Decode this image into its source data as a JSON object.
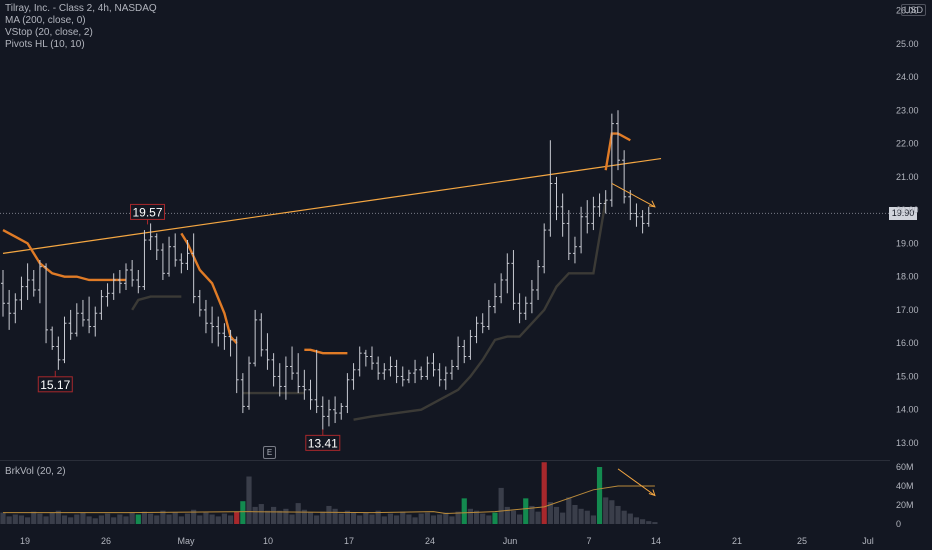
{
  "header": {
    "title": "Tilray, Inc. - Class 2, 4h, NASDAQ",
    "indicators": [
      "MA (200, close, 0)",
      "VStop (20, close, 2)",
      "Pivots HL (10, 10)"
    ]
  },
  "currency_button": "USD",
  "last_price_label": "19.90",
  "earnings_marker": "E",
  "volume_legend": "BrkVol (20, 2)",
  "colors": {
    "background": "#131722",
    "candle": "#c8cad2",
    "ma": "#f5a742",
    "vstop_up": "#3b3a36",
    "vstop_down": "#e07b26",
    "vol_neutral": "#3a3e4a",
    "vol_up": "#138a4f",
    "vol_down": "#a8282c",
    "vol_ma": "#b98a3a"
  },
  "chart_data": [
    {
      "type": "line",
      "title": "Tilray, Inc. - Class 2, 4h, NASDAQ",
      "ylim": [
        12.5,
        26.0
      ],
      "y_ticks": [
        "13.00",
        "14.00",
        "15.00",
        "16.00",
        "17.00",
        "18.00",
        "19.00",
        "20.00",
        "21.00",
        "22.00",
        "23.00",
        "24.00",
        "25.00",
        "26.00"
      ],
      "x_ticks": [
        "19",
        "26",
        "May",
        "10",
        "17",
        "24",
        "Jun",
        "7",
        "14",
        "21",
        "25",
        "Jul"
      ],
      "last_price": 19.9,
      "pivot_labels": [
        {
          "value": "19.57",
          "x": 23.5,
          "y": 19.57,
          "kind": "high"
        },
        {
          "value": "15.17",
          "x": 8.5,
          "y": 15.17,
          "kind": "low"
        },
        {
          "value": "13.41",
          "x": 52,
          "y": 13.41,
          "kind": "low"
        }
      ],
      "ohlc": [
        [
          17.8,
          18.2,
          16.8,
          17.2
        ],
        [
          17.2,
          17.6,
          16.4,
          16.9
        ],
        [
          16.9,
          17.5,
          16.6,
          17.3
        ],
        [
          17.3,
          18.0,
          17.0,
          17.7
        ],
        [
          17.7,
          18.4,
          17.3,
          17.9
        ],
        [
          17.9,
          18.2,
          17.4,
          17.6
        ],
        [
          17.6,
          18.5,
          17.2,
          18.3
        ],
        [
          18.3,
          18.4,
          16.0,
          16.4
        ],
        [
          16.4,
          16.5,
          15.8,
          15.9
        ],
        [
          15.9,
          16.2,
          15.2,
          15.5
        ],
        [
          15.5,
          16.8,
          15.4,
          16.6
        ],
        [
          16.6,
          17.0,
          16.1,
          16.3
        ],
        [
          16.3,
          17.2,
          16.2,
          16.9
        ],
        [
          16.9,
          17.3,
          16.5,
          16.7
        ],
        [
          16.7,
          17.4,
          16.3,
          16.5
        ],
        [
          16.5,
          17.1,
          16.2,
          16.9
        ],
        [
          16.9,
          17.6,
          16.7,
          17.4
        ],
        [
          17.4,
          17.8,
          17.1,
          17.5
        ],
        [
          17.5,
          18.1,
          17.3,
          17.9
        ],
        [
          17.9,
          18.2,
          17.5,
          17.8
        ],
        [
          17.8,
          18.4,
          17.6,
          18.2
        ],
        [
          18.2,
          18.5,
          17.7,
          17.9
        ],
        [
          17.9,
          18.2,
          17.5,
          17.7
        ],
        [
          17.7,
          19.4,
          17.6,
          19.1
        ],
        [
          19.1,
          19.6,
          18.8,
          19.2
        ],
        [
          19.2,
          19.3,
          18.5,
          18.8
        ],
        [
          18.8,
          19.0,
          17.9,
          18.1
        ],
        [
          18.1,
          19.2,
          18.0,
          18.9
        ],
        [
          18.9,
          19.3,
          18.3,
          18.5
        ],
        [
          18.5,
          18.7,
          18.1,
          18.4
        ],
        [
          18.4,
          19.1,
          18.2,
          18.7
        ],
        [
          18.7,
          19.3,
          17.2,
          17.4
        ],
        [
          17.4,
          17.6,
          16.8,
          17.0
        ],
        [
          17.0,
          17.3,
          16.3,
          16.6
        ],
        [
          16.6,
          17.1,
          16.0,
          16.5
        ],
        [
          16.5,
          16.8,
          15.9,
          16.3
        ],
        [
          16.3,
          16.6,
          15.8,
          16.2
        ],
        [
          16.2,
          16.4,
          15.6,
          16.1
        ],
        [
          16.1,
          16.2,
          14.5,
          14.9
        ],
        [
          14.9,
          15.1,
          13.9,
          14.1
        ],
        [
          14.1,
          15.6,
          14.0,
          15.4
        ],
        [
          15.4,
          17.0,
          15.3,
          16.7
        ],
        [
          16.7,
          16.9,
          15.6,
          15.8
        ],
        [
          15.8,
          16.3,
          15.2,
          15.5
        ],
        [
          15.5,
          15.7,
          14.7,
          15.0
        ],
        [
          15.0,
          15.4,
          14.4,
          14.7
        ],
        [
          14.7,
          15.6,
          14.3,
          15.3
        ],
        [
          15.3,
          15.9,
          14.9,
          15.1
        ],
        [
          15.1,
          15.7,
          14.5,
          14.7
        ],
        [
          14.7,
          15.2,
          14.3,
          14.6
        ],
        [
          14.6,
          14.9,
          14.0,
          14.3
        ],
        [
          14.3,
          15.8,
          13.9,
          14.1
        ],
        [
          14.1,
          14.4,
          13.4,
          13.8
        ],
        [
          13.8,
          14.3,
          13.5,
          14.0
        ],
        [
          14.0,
          14.4,
          13.6,
          13.9
        ],
        [
          13.9,
          14.2,
          13.7,
          14.1
        ],
        [
          14.1,
          15.1,
          13.9,
          14.9
        ],
        [
          14.9,
          15.4,
          14.6,
          15.2
        ],
        [
          15.2,
          15.9,
          15.0,
          15.7
        ],
        [
          15.7,
          15.8,
          15.3,
          15.6
        ],
        [
          15.6,
          15.9,
          15.2,
          15.4
        ],
        [
          15.4,
          15.6,
          14.9,
          15.1
        ],
        [
          15.1,
          15.4,
          14.9,
          15.2
        ],
        [
          15.2,
          15.6,
          15.0,
          15.3
        ],
        [
          15.3,
          15.5,
          14.8,
          15.0
        ],
        [
          15.0,
          15.3,
          14.7,
          14.9
        ],
        [
          14.9,
          15.2,
          14.8,
          15.1
        ],
        [
          15.1,
          15.5,
          14.8,
          15.2
        ],
        [
          15.2,
          15.3,
          14.9,
          15.0
        ],
        [
          15.0,
          15.6,
          14.9,
          15.4
        ],
        [
          15.4,
          15.7,
          15.0,
          15.2
        ],
        [
          15.2,
          15.4,
          14.7,
          14.9
        ],
        [
          14.9,
          15.3,
          14.6,
          15.1
        ],
        [
          15.1,
          15.5,
          14.9,
          15.3
        ],
        [
          15.3,
          16.2,
          15.2,
          15.9
        ],
        [
          15.9,
          16.1,
          15.4,
          15.6
        ],
        [
          15.6,
          16.4,
          15.5,
          16.2
        ],
        [
          16.2,
          16.8,
          16.0,
          16.6
        ],
        [
          16.6,
          16.9,
          16.3,
          16.5
        ],
        [
          16.5,
          17.3,
          16.4,
          17.1
        ],
        [
          17.1,
          17.8,
          16.9,
          17.4
        ],
        [
          17.4,
          18.1,
          17.2,
          17.9
        ],
        [
          17.9,
          18.7,
          17.5,
          18.4
        ],
        [
          18.4,
          18.8,
          17.0,
          17.2
        ],
        [
          17.2,
          17.5,
          16.6,
          16.9
        ],
        [
          16.9,
          17.4,
          16.7,
          17.2
        ],
        [
          17.2,
          17.9,
          16.9,
          17.6
        ],
        [
          17.6,
          18.5,
          17.3,
          18.3
        ],
        [
          18.3,
          19.6,
          18.1,
          19.4
        ],
        [
          19.4,
          22.1,
          19.2,
          20.8
        ],
        [
          20.8,
          21.0,
          19.7,
          20.1
        ],
        [
          20.1,
          20.5,
          19.2,
          19.6
        ],
        [
          19.6,
          20.0,
          18.5,
          18.7
        ],
        [
          18.7,
          19.2,
          18.4,
          18.9
        ],
        [
          18.9,
          20.1,
          18.7,
          19.8
        ],
        [
          19.8,
          20.3,
          19.3,
          19.6
        ],
        [
          19.6,
          20.4,
          19.4,
          20.1
        ],
        [
          20.1,
          20.5,
          19.8,
          20.2
        ],
        [
          20.2,
          20.6,
          19.9,
          20.3
        ],
        [
          20.3,
          22.9,
          20.1,
          22.6
        ],
        [
          22.6,
          23.0,
          21.2,
          21.5
        ],
        [
          21.5,
          21.8,
          20.2,
          20.4
        ],
        [
          20.4,
          20.6,
          19.7,
          19.9
        ],
        [
          19.9,
          20.2,
          19.5,
          19.8
        ],
        [
          19.8,
          20.0,
          19.3,
          19.6
        ],
        [
          19.6,
          20.1,
          19.5,
          19.9
        ]
      ],
      "series": [
        {
          "name": "MA (200, close, 0)",
          "x": [
            0,
            107
          ],
          "values": [
            18.7,
            21.55
          ]
        },
        {
          "name": "VStop (20, close, 2)",
          "segments": [
            {
              "trend": "down",
              "x": [
                0,
                2,
                4,
                6,
                8,
                10,
                12,
                14,
                16,
                18,
                20
              ],
              "values": [
                19.4,
                19.2,
                19.0,
                18.4,
                18.1,
                18.0,
                18.0,
                17.9,
                17.9,
                17.9,
                17.9
              ]
            },
            {
              "trend": "up",
              "x": [
                21,
                22,
                24,
                26,
                28,
                29
              ],
              "values": [
                17.0,
                17.3,
                17.4,
                17.4,
                17.4,
                17.4
              ]
            },
            {
              "trend": "down",
              "x": [
                29,
                30,
                32,
                34,
                36,
                37,
                38
              ],
              "values": [
                19.3,
                19.0,
                18.2,
                17.8,
                16.9,
                16.2,
                16.0
              ]
            },
            {
              "trend": "up",
              "x": [
                39,
                40,
                42,
                44,
                46,
                48,
                49
              ],
              "values": [
                14.5,
                14.5,
                14.5,
                14.5,
                14.5,
                14.5,
                14.5
              ]
            },
            {
              "trend": "down",
              "x": [
                49,
                50,
                52,
                54,
                56
              ],
              "values": [
                15.8,
                15.8,
                15.7,
                15.7,
                15.7
              ]
            },
            {
              "trend": "up",
              "x": [
                57,
                60,
                64,
                68,
                72,
                74,
                76,
                78,
                80,
                82,
                84,
                88,
                90,
                92,
                94,
                96,
                98
              ],
              "values": [
                13.7,
                13.8,
                13.9,
                14.0,
                14.4,
                14.6,
                15.0,
                15.5,
                16.1,
                16.2,
                16.2,
                17.0,
                17.7,
                18.1,
                18.1,
                18.1,
                20.3
              ]
            },
            {
              "trend": "down",
              "x": [
                98,
                99,
                100,
                102
              ],
              "values": [
                21.2,
                22.3,
                22.3,
                22.1
              ]
            }
          ]
        }
      ],
      "annotation_arrow": {
        "from": [
          99,
          20.8
        ],
        "to": [
          106,
          20.1
        ]
      }
    },
    {
      "type": "bar",
      "title": "BrkVol (20, 2)",
      "ylim": [
        0,
        65
      ],
      "y_ticks": [
        "0",
        "20M",
        "40M",
        "60M"
      ],
      "values": [
        12,
        8,
        10,
        9,
        7,
        13,
        11,
        8,
        12,
        14,
        9,
        7,
        10,
        12,
        8,
        6,
        9,
        11,
        7,
        10,
        8,
        12,
        10,
        13,
        11,
        9,
        14,
        10,
        12,
        8,
        11,
        15,
        9,
        12,
        10,
        8,
        11,
        9,
        13,
        24,
        50,
        18,
        21,
        14,
        18,
        14,
        16,
        10,
        22,
        15,
        12,
        9,
        13,
        19,
        16,
        11,
        14,
        12,
        9,
        12,
        10,
        14,
        8,
        11,
        9,
        13,
        10,
        7,
        11,
        12,
        9,
        10,
        12,
        8,
        13,
        27,
        16,
        14,
        11,
        9,
        12,
        38,
        18,
        14,
        10,
        27,
        19,
        13,
        65,
        23,
        18,
        12,
        28,
        20,
        16,
        14,
        9,
        60,
        28,
        25,
        19,
        14,
        11,
        7,
        5,
        3,
        2,
        0
      ],
      "colors": [
        "n",
        "n",
        "n",
        "n",
        "n",
        "n",
        "n",
        "n",
        "n",
        "n",
        "n",
        "n",
        "n",
        "n",
        "n",
        "n",
        "n",
        "n",
        "n",
        "n",
        "n",
        "n",
        "u",
        "n",
        "n",
        "n",
        "n",
        "n",
        "n",
        "n",
        "n",
        "n",
        "n",
        "n",
        "n",
        "n",
        "n",
        "n",
        "d",
        "u",
        "n",
        "n",
        "n",
        "n",
        "n",
        "n",
        "n",
        "n",
        "n",
        "n",
        "n",
        "n",
        "n",
        "n",
        "n",
        "n",
        "n",
        "n",
        "n",
        "n",
        "n",
        "n",
        "n",
        "n",
        "n",
        "n",
        "n",
        "n",
        "n",
        "n",
        "n",
        "n",
        "n",
        "n",
        "n",
        "u",
        "n",
        "n",
        "n",
        "n",
        "u",
        "n",
        "n",
        "n",
        "n",
        "u",
        "n",
        "n",
        "d",
        "n",
        "n",
        "n",
        "n",
        "n",
        "n",
        "n",
        "n",
        "u",
        "n",
        "n",
        "n",
        "n",
        "n",
        "n",
        "n",
        "n",
        "n",
        "n"
      ],
      "ma": {
        "name": "MA",
        "x": [
          0,
          20,
          40,
          60,
          70,
          72,
          80,
          88,
          96,
          100,
          106
        ],
        "values": [
          12,
          12,
          13,
          12,
          13,
          11,
          13,
          18,
          36,
          40,
          40
        ]
      },
      "annotation_arrow": {
        "from": [
          100,
          58
        ],
        "to": [
          106,
          30
        ]
      }
    }
  ]
}
